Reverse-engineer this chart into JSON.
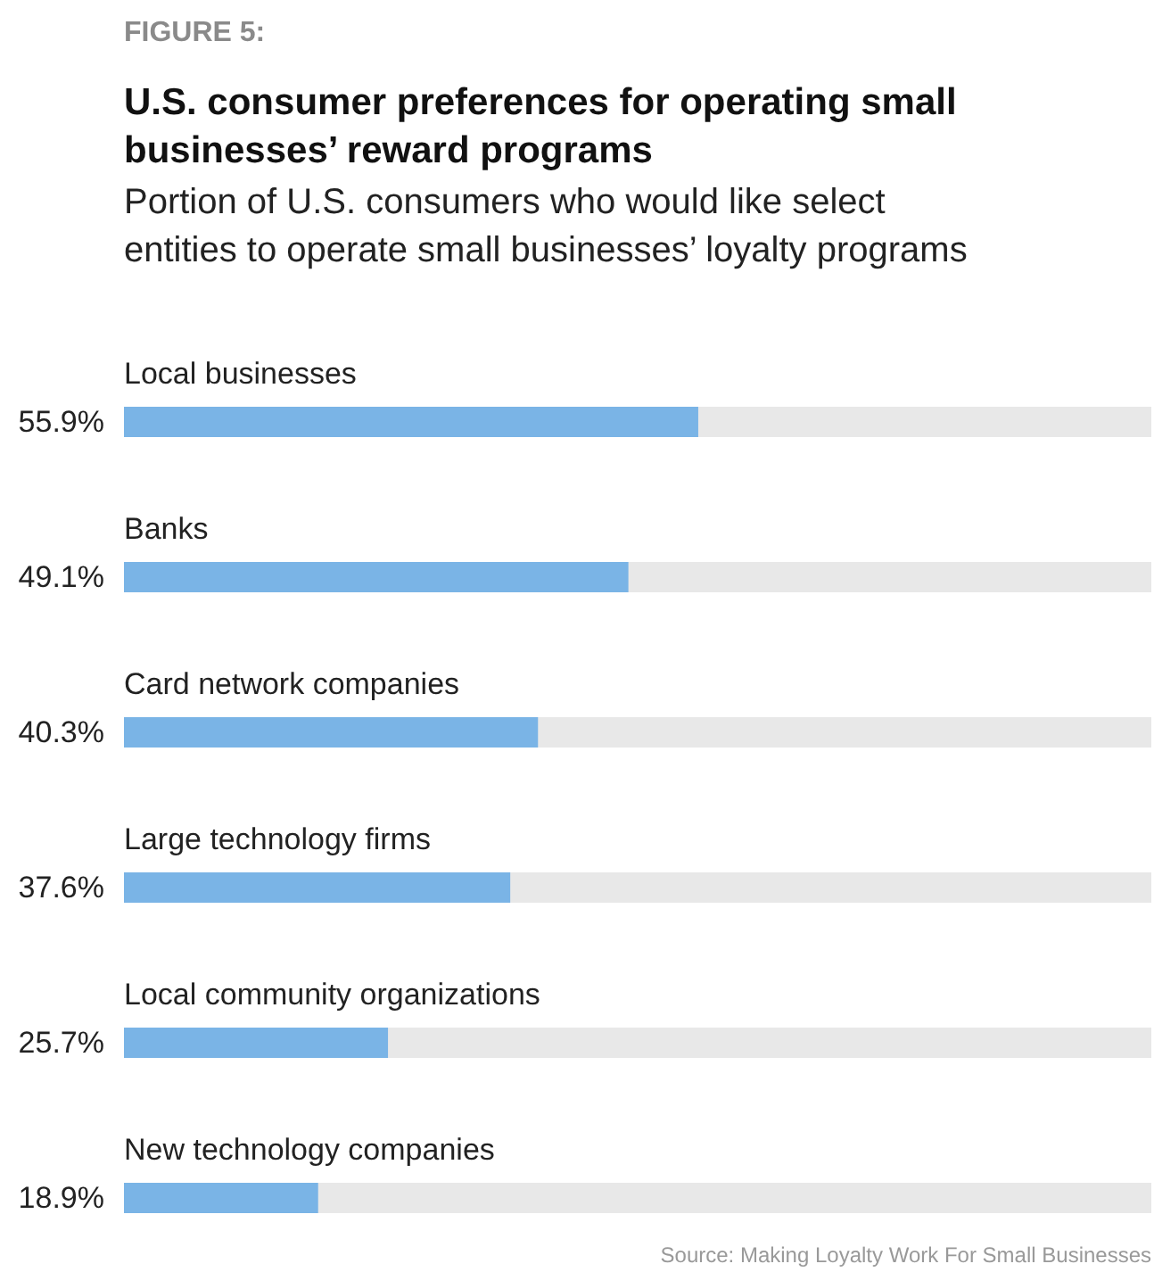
{
  "chart_data": {
    "type": "bar",
    "orientation": "horizontal",
    "title": "U.S. consumer preferences for operating small businesses’ reward programs",
    "subtitle": "Portion of U.S. consumers who would like select entities to operate small businesses’ loyalty programs",
    "annotations": [
      "FIGURE 5:",
      "Source: Making Loyalty Work For Small Businesses"
    ],
    "categories": [
      "Local businesses",
      "Banks",
      "Card network companies",
      "Large technology firms",
      "Local community organizations",
      "New technology companies"
    ],
    "values": [
      55.9,
      49.1,
      40.3,
      37.6,
      25.7,
      18.9
    ],
    "value_labels": [
      "55.9%",
      "49.1%",
      "40.3%",
      "37.6%",
      "25.7%",
      "18.9%"
    ],
    "color": "#7ab4e6",
    "xlim": [
      0,
      100
    ]
  }
}
